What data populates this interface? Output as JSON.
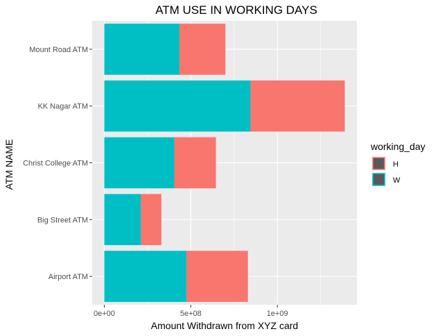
{
  "chart_data": {
    "type": "bar",
    "orientation": "horizontal",
    "stacked": true,
    "title": "ATM USE IN WORKING DAYS",
    "xlabel": "Amount Withdrawn from XYZ card",
    "ylabel": "ATM NAME",
    "categories": [
      "Mount Road ATM",
      "KK Nagar ATM",
      "Christ College ATM",
      "Big Street ATM",
      "Airport ATM"
    ],
    "series": [
      {
        "name": "W",
        "color": "#00BFC4",
        "values": [
          435000000,
          845000000,
          405000000,
          212000000,
          475000000
        ]
      },
      {
        "name": "H",
        "color": "#F8766D",
        "values": [
          265000000,
          545000000,
          240000000,
          118000000,
          355000000
        ]
      }
    ],
    "xlim": [
      -70000000,
      1460000000
    ],
    "xticks": [
      {
        "value": 0,
        "label": "0e+00"
      },
      {
        "value": 500000000,
        "label": "5e+08"
      },
      {
        "value": 1000000000,
        "label": "1e+09"
      }
    ],
    "grid": true,
    "legend": {
      "title": "working_day",
      "placement": "right",
      "entries": [
        {
          "label": "H",
          "color": "#F8766D"
        },
        {
          "label": "W",
          "color": "#00BFC4"
        }
      ]
    }
  }
}
